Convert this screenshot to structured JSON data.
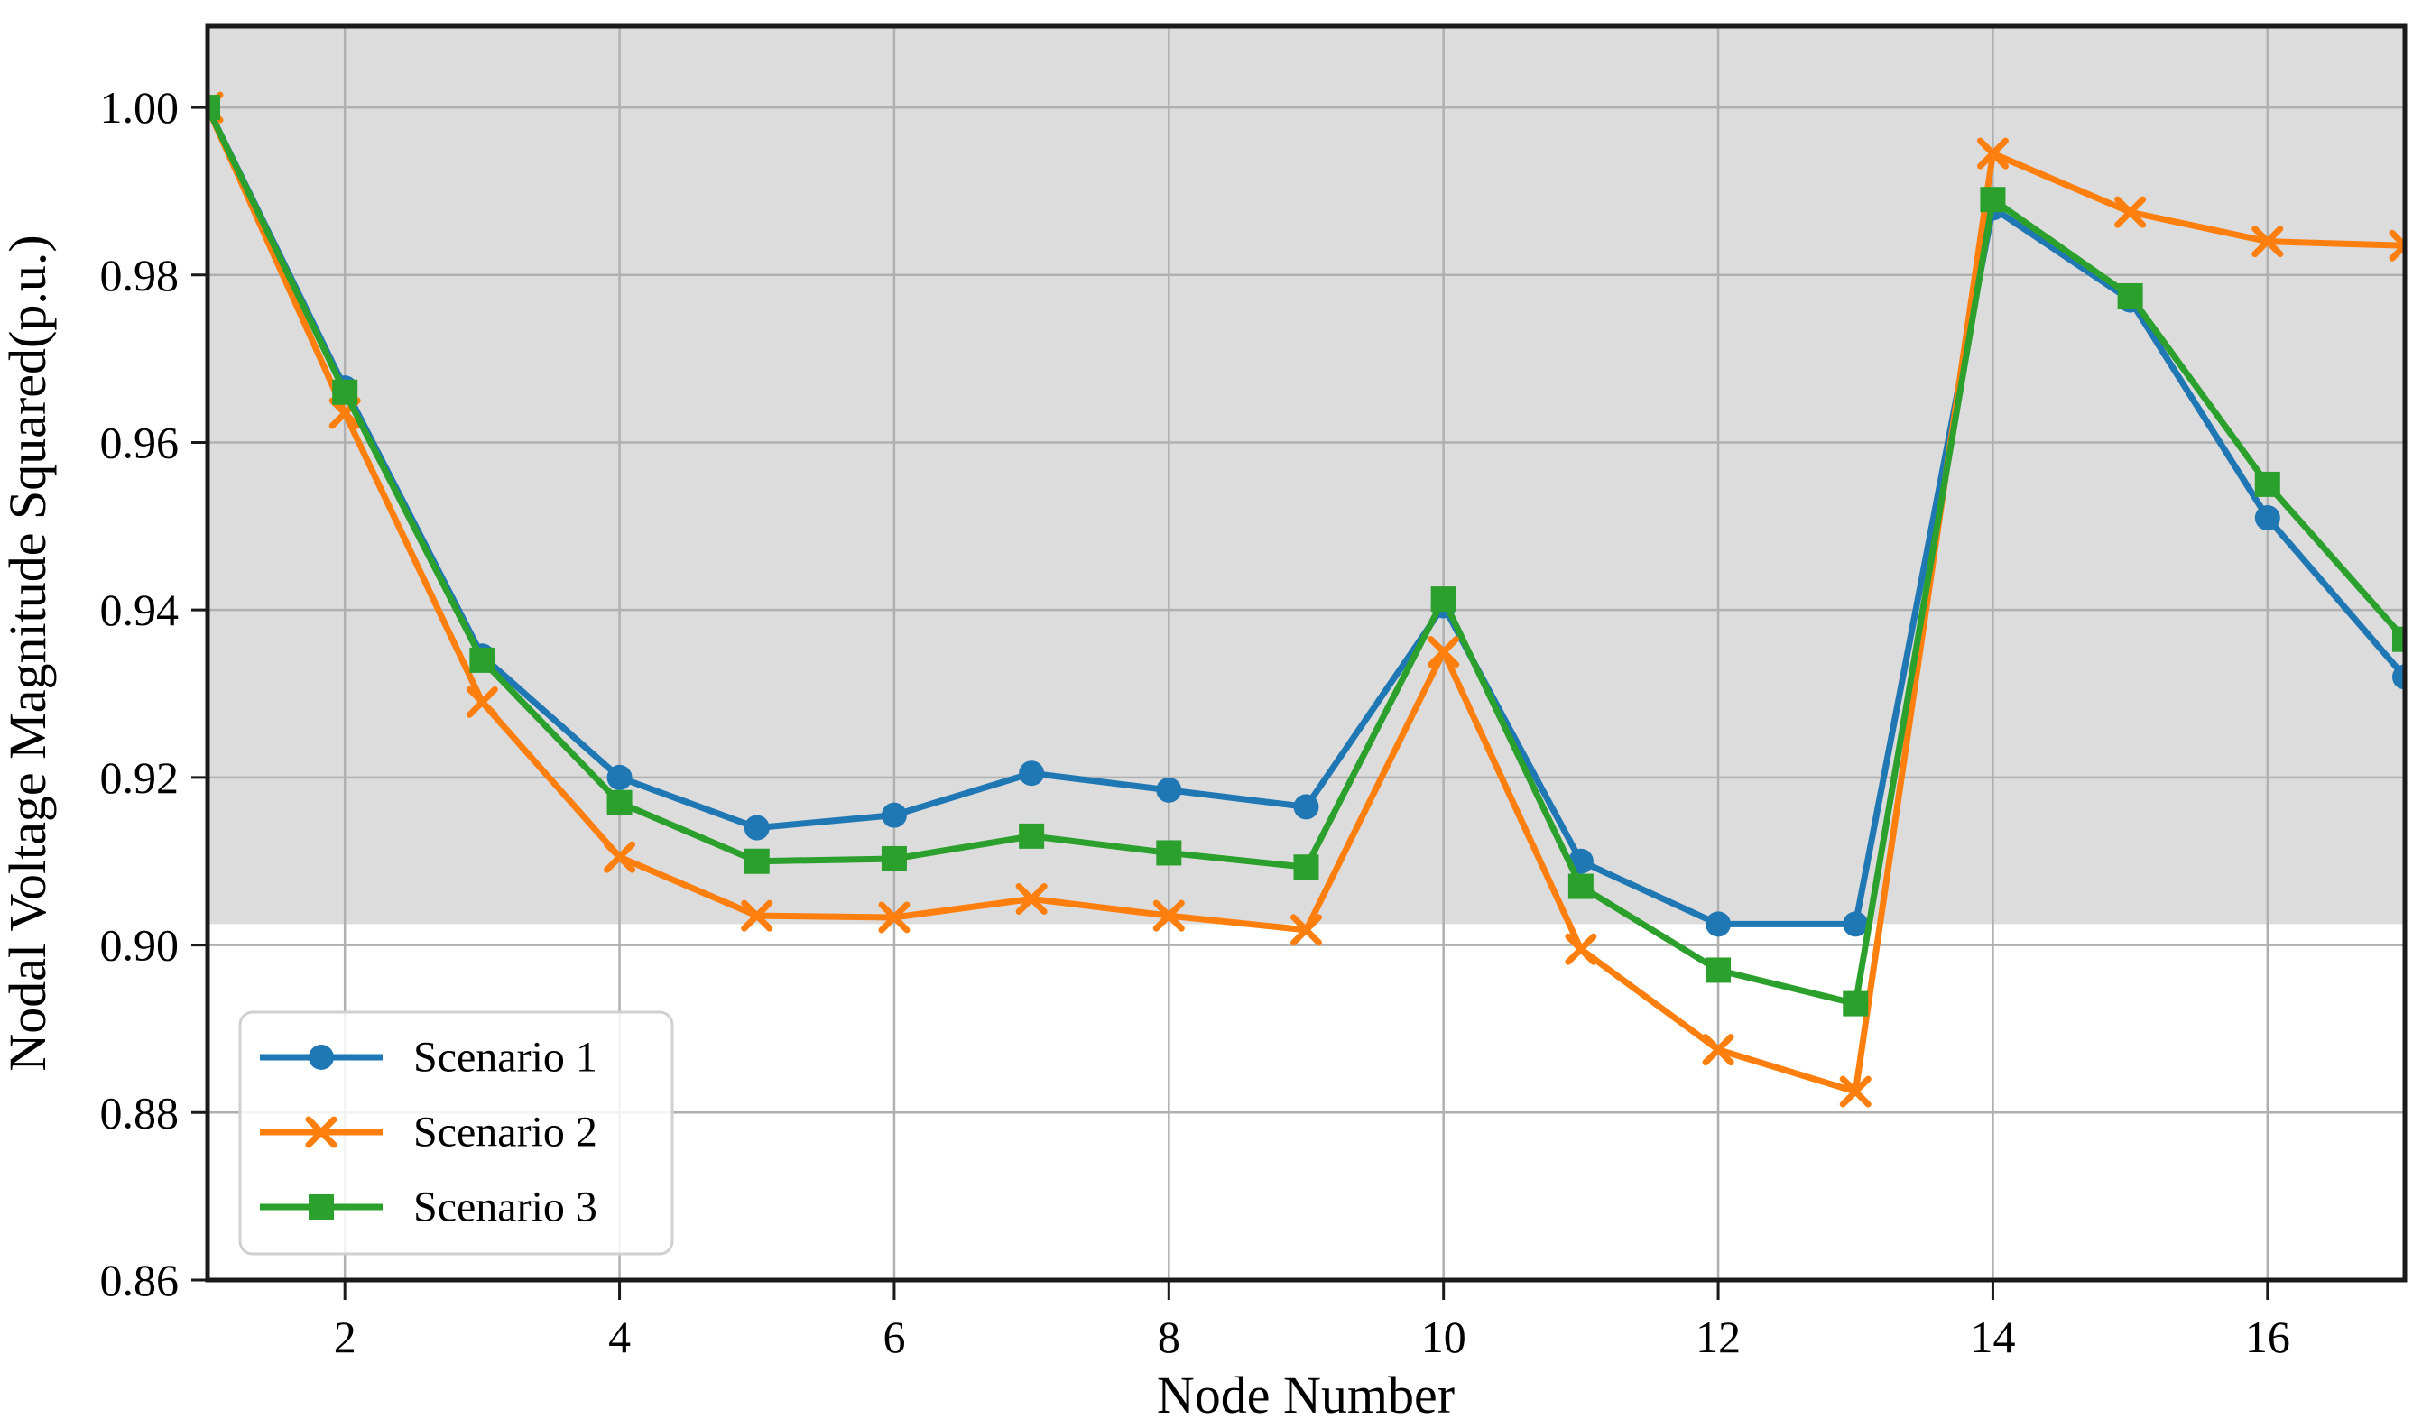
{
  "chart_data": {
    "type": "line",
    "title": "",
    "xlabel": "Node Number",
    "ylabel": "Nodal Voltage Magnitude Squared(p.u.)",
    "x": [
      1,
      2,
      3,
      4,
      5,
      6,
      7,
      8,
      9,
      10,
      11,
      12,
      13,
      14,
      15,
      16,
      17
    ],
    "xlim": [
      1,
      17
    ],
    "ylim": [
      0.86,
      1.0097
    ],
    "xticks": {
      "values": [
        2,
        4,
        6,
        8,
        10,
        12,
        14,
        16
      ],
      "labels": [
        "2",
        "4",
        "6",
        "8",
        "10",
        "12",
        "14",
        "16"
      ]
    },
    "yticks": {
      "values": [
        0.86,
        0.88,
        0.9,
        0.92,
        0.94,
        0.96,
        0.98,
        1.0
      ],
      "labels": [
        "0.86",
        "0.88",
        "0.90",
        "0.92",
        "0.94",
        "0.96",
        "0.98",
        "1.00"
      ]
    },
    "grid": true,
    "grid_color": "#b0b0b0",
    "spine_color": "#1a1a1a",
    "shaded_band": {
      "from": 0.9025,
      "to": 1.0097,
      "color": "#dcdcdc"
    },
    "legend": {
      "position": "lower-left"
    },
    "series": [
      {
        "name": "Scenario 1",
        "color": "#1f77b4",
        "marker": "circle",
        "values": [
          1.0,
          0.9665,
          0.9345,
          0.92,
          0.914,
          0.9155,
          0.9205,
          0.9185,
          0.9165,
          0.9405,
          0.91,
          0.9025,
          0.9025,
          0.988,
          0.977,
          0.951,
          0.932
        ]
      },
      {
        "name": "Scenario 2",
        "color": "#ff7f0e",
        "marker": "x",
        "values": [
          1.0,
          0.9635,
          0.929,
          0.9105,
          0.9035,
          0.9033,
          0.9055,
          0.9035,
          0.9018,
          0.935,
          0.8995,
          0.8875,
          0.8825,
          0.9945,
          0.9875,
          0.984,
          0.9835
        ]
      },
      {
        "name": "Scenario 3",
        "color": "#2ca02c",
        "marker": "square",
        "values": [
          1.0,
          0.966,
          0.934,
          0.917,
          0.91,
          0.9103,
          0.913,
          0.911,
          0.9093,
          0.9413,
          0.907,
          0.897,
          0.893,
          0.989,
          0.9775,
          0.955,
          0.9365
        ]
      }
    ]
  }
}
